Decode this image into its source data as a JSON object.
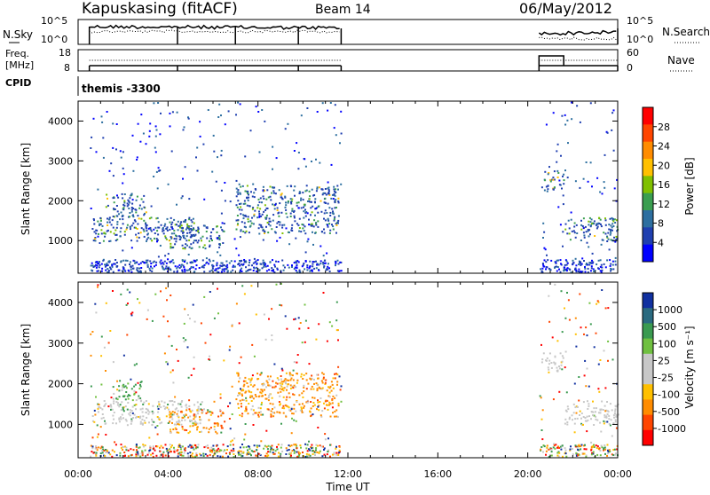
{
  "header": {
    "station": "Kapuskasing (fitACF)",
    "beam": "Beam 14",
    "date": "06/May/2012"
  },
  "top_panels": {
    "nsky_label": "N.Sky",
    "nsearch_label": "N.Search",
    "nsky_ticks": [
      "10^5",
      "10^0"
    ],
    "nsearch_ticks": [
      "10^5",
      "10^0"
    ],
    "freq_label_line1": "Freq.",
    "freq_label_line2": "[MHz]",
    "freq_ticks": [
      "18",
      "8"
    ],
    "nave_label": "Nave",
    "nave_ticks": [
      "60",
      "0"
    ],
    "cpid_label": "CPID",
    "cpid_value": "themis -3300"
  },
  "axes": {
    "xlabel": "Time UT",
    "ylabel": "Slant Range [km]",
    "x_tick_labels": [
      "00:00",
      "04:00",
      "08:00",
      "12:00",
      "16:00",
      "20:00",
      "00:00"
    ],
    "y_tick_labels": [
      "1000",
      "2000",
      "3000",
      "4000"
    ]
  },
  "colorbars": {
    "power": {
      "label": "Power [dB]",
      "tick_labels": [
        "28",
        "24",
        "20",
        "16",
        "12",
        "8",
        "4"
      ],
      "colors": [
        "#ff0000",
        "#ff4500",
        "#ff8c00",
        "#ffc000",
        "#80c000",
        "#3a9e50",
        "#2d6fa0",
        "#1f3fb0",
        "#0000ff"
      ]
    },
    "velocity": {
      "label": "Velocity [m s⁻¹]",
      "tick_labels": [
        "1000",
        "500",
        "100",
        "25",
        "-25",
        "-100",
        "-500",
        "-1000"
      ],
      "colors": [
        "#1030a0",
        "#2a6a80",
        "#3a9a50",
        "#70c040",
        "#c8c8c8",
        "#c8c8c8",
        "#ffc000",
        "#ff8c00",
        "#ff4500",
        "#ff0000"
      ]
    }
  },
  "chart_data": [
    {
      "type": "heatmap",
      "name": "power",
      "x_range_hours": [
        0,
        24
      ],
      "y_range_km": [
        180,
        4500
      ],
      "colorbar_range_db": [
        0,
        30
      ],
      "coverage_segments_hours": [
        [
          0.5,
          11.7
        ],
        [
          20.5,
          24.0
        ]
      ],
      "echo_regions": [
        {
          "t": [
            0.6,
            5.5
          ],
          "range_km": [
            1000,
            1600
          ],
          "level_db": 8
        },
        {
          "t": [
            1.2,
            3.0
          ],
          "range_km": [
            1600,
            2200
          ],
          "level_db": 8
        },
        {
          "t": [
            4.0,
            6.5
          ],
          "range_km": [
            800,
            1400
          ],
          "level_db": 12
        },
        {
          "t": [
            7.0,
            11.6
          ],
          "range_km": [
            1200,
            2400
          ],
          "level_db": 14
        },
        {
          "t": [
            20.6,
            21.6
          ],
          "range_km": [
            2300,
            2800
          ],
          "level_db": 6
        },
        {
          "t": [
            21.6,
            24.0
          ],
          "range_km": [
            1000,
            1600
          ],
          "level_db": 10
        }
      ]
    },
    {
      "type": "heatmap",
      "name": "velocity",
      "x_range_hours": [
        0,
        24
      ],
      "y_range_km": [
        180,
        4500
      ],
      "colorbar_range_ms": [
        -1000,
        1000
      ],
      "coverage_segments_hours": [
        [
          0.5,
          11.7
        ],
        [
          20.5,
          24.0
        ]
      ],
      "echo_regions": [
        {
          "t": [
            0.6,
            5.5
          ],
          "range_km": [
            1000,
            1600
          ],
          "velocity_ms": 0
        },
        {
          "t": [
            1.5,
            2.8
          ],
          "range_km": [
            1600,
            2100
          ],
          "velocity_ms": 100
        },
        {
          "t": [
            4.0,
            6.5
          ],
          "range_km": [
            800,
            1400
          ],
          "velocity_ms": -300
        },
        {
          "t": [
            7.0,
            11.6
          ],
          "range_km": [
            1200,
            2300
          ],
          "velocity_ms": -400
        },
        {
          "t": [
            20.6,
            21.6
          ],
          "range_km": [
            2300,
            2800
          ],
          "velocity_ms": 0
        },
        {
          "t": [
            21.6,
            24.0
          ],
          "range_km": [
            1000,
            1600
          ],
          "velocity_ms": 0
        }
      ]
    }
  ]
}
